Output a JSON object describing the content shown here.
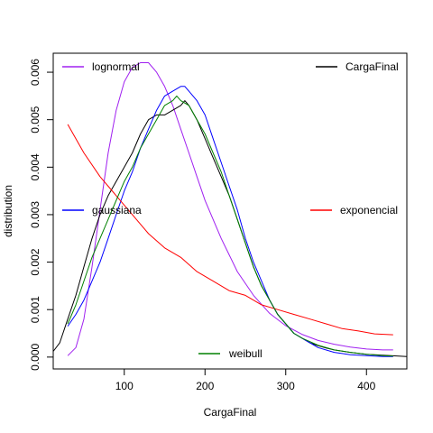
{
  "chart_data": {
    "type": "line",
    "xlabel": "CargaFinal",
    "ylabel": "distribution",
    "xlim": [
      12,
      450
    ],
    "ylim": [
      -0.00025,
      0.0064
    ],
    "x_ticks": [
      {
        "value": 100,
        "label": "100"
      },
      {
        "value": 200,
        "label": "200"
      },
      {
        "value": 300,
        "label": "300"
      },
      {
        "value": 400,
        "label": "400"
      }
    ],
    "y_ticks": [
      {
        "value": 0.0,
        "label": "0.000"
      },
      {
        "value": 0.001,
        "label": "0.001"
      },
      {
        "value": 0.002,
        "label": "0.002"
      },
      {
        "value": 0.003,
        "label": "0.003"
      },
      {
        "value": 0.004,
        "label": "0.004"
      },
      {
        "value": 0.005,
        "label": "0.005"
      },
      {
        "value": 0.006,
        "label": "0.006"
      }
    ],
    "legend": [
      {
        "label": "lognormal",
        "color": "#a020f0",
        "placement": "top-left"
      },
      {
        "label": "CargaFinal",
        "color": "#000000",
        "placement": "top-right"
      },
      {
        "label": "gaussiana",
        "color": "#0000ff",
        "placement": "left"
      },
      {
        "label": "exponencial",
        "color": "#ff0000",
        "placement": "right"
      },
      {
        "label": "weibull",
        "color": "#008000",
        "placement": "bottom"
      }
    ],
    "series": [
      {
        "name": "lognormal",
        "color": "#a020f0",
        "x": [
          30,
          40,
          50,
          60,
          70,
          80,
          90,
          100,
          110,
          120,
          130,
          140,
          150,
          160,
          170,
          180,
          190,
          200,
          220,
          240,
          260,
          280,
          300,
          320,
          340,
          360,
          380,
          400,
          420,
          433
        ],
        "y": [
          3e-05,
          0.0002,
          0.0008,
          0.0019,
          0.0031,
          0.0043,
          0.0052,
          0.0058,
          0.0061,
          0.0062,
          0.0062,
          0.006,
          0.0057,
          0.0053,
          0.0048,
          0.0043,
          0.0038,
          0.0033,
          0.0025,
          0.0018,
          0.0013,
          0.00092,
          0.00066,
          0.00048,
          0.00035,
          0.00027,
          0.00021,
          0.00017,
          0.00015,
          0.00015
        ]
      },
      {
        "name": "CargaFinal",
        "color": "#000000",
        "x": [
          12,
          20,
          30,
          40,
          50,
          60,
          70,
          80,
          90,
          100,
          110,
          120,
          130,
          140,
          150,
          160,
          170,
          175,
          180,
          190,
          200,
          210,
          220,
          230,
          240,
          250,
          260,
          270,
          280,
          290,
          300,
          310,
          320,
          330,
          340,
          350,
          360,
          380,
          400,
          420,
          440,
          450
        ],
        "y": [
          0.00012,
          0.0003,
          0.0008,
          0.0013,
          0.0019,
          0.0025,
          0.003,
          0.0034,
          0.0037,
          0.004,
          0.0043,
          0.0047,
          0.005,
          0.0051,
          0.0051,
          0.0052,
          0.0053,
          0.0054,
          0.0053,
          0.005,
          0.0046,
          0.0042,
          0.0038,
          0.0034,
          0.0029,
          0.0024,
          0.0019,
          0.0015,
          0.0012,
          0.0009,
          0.0007,
          0.0005,
          0.0004,
          0.0003,
          0.00024,
          0.00019,
          0.00015,
          0.0001,
          6e-05,
          4e-05,
          2e-05,
          1e-05
        ]
      },
      {
        "name": "gaussiana",
        "color": "#0000ff",
        "x": [
          30,
          40,
          50,
          60,
          70,
          80,
          90,
          100,
          110,
          120,
          130,
          140,
          150,
          160,
          170,
          175,
          180,
          190,
          200,
          210,
          220,
          230,
          240,
          250,
          260,
          270,
          280,
          290,
          300,
          310,
          320,
          340,
          360,
          380,
          400,
          420,
          433
        ],
        "y": [
          0.00065,
          0.0009,
          0.0012,
          0.0016,
          0.002,
          0.0025,
          0.003,
          0.0035,
          0.0039,
          0.0044,
          0.0048,
          0.0052,
          0.0055,
          0.0056,
          0.0057,
          0.0057,
          0.0056,
          0.0054,
          0.0051,
          0.0046,
          0.0041,
          0.0036,
          0.0031,
          0.0025,
          0.002,
          0.0016,
          0.0012,
          0.0009,
          0.0007,
          0.0005,
          0.0004,
          0.0002,
          0.0001,
          5e-05,
          3e-05,
          1e-05,
          1e-05
        ]
      },
      {
        "name": "exponencial",
        "color": "#ff0000",
        "x": [
          30,
          50,
          70,
          90,
          110,
          130,
          150,
          170,
          190,
          210,
          230,
          250,
          270,
          290,
          310,
          330,
          350,
          370,
          390,
          410,
          433
        ],
        "y": [
          0.0049,
          0.0043,
          0.0038,
          0.0034,
          0.003,
          0.0026,
          0.0023,
          0.0021,
          0.0018,
          0.0016,
          0.0014,
          0.0013,
          0.0011,
          0.001,
          0.0009,
          0.0008,
          0.0007,
          0.0006,
          0.00055,
          0.00049,
          0.00047
        ]
      },
      {
        "name": "weibull",
        "color": "#008000",
        "x": [
          30,
          40,
          50,
          60,
          70,
          80,
          90,
          100,
          110,
          120,
          130,
          140,
          150,
          160,
          165,
          170,
          180,
          190,
          200,
          210,
          220,
          230,
          240,
          250,
          260,
          270,
          280,
          290,
          300,
          310,
          320,
          340,
          360,
          380,
          400,
          420,
          433
        ],
        "y": [
          0.0007,
          0.0011,
          0.0016,
          0.0021,
          0.0025,
          0.0029,
          0.0033,
          0.0037,
          0.004,
          0.0044,
          0.0047,
          0.005,
          0.0053,
          0.0054,
          0.0055,
          0.0054,
          0.0053,
          0.005,
          0.0047,
          0.0043,
          0.0039,
          0.0034,
          0.0029,
          0.0024,
          0.0019,
          0.0015,
          0.0012,
          0.0009,
          0.0007,
          0.0005,
          0.0004,
          0.00025,
          0.00015,
          0.0001,
          6e-05,
          3e-05,
          2e-05
        ]
      }
    ]
  }
}
